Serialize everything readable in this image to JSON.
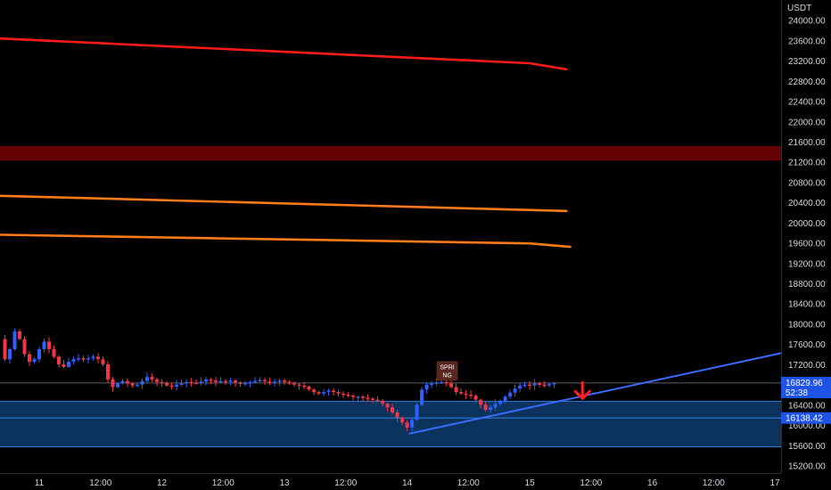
{
  "chart_data": {
    "type": "candlestick",
    "currency": "USDT",
    "ylim": [
      15050,
      24400
    ],
    "y_ticks": [
      "24000.00",
      "23600.00",
      "23200.00",
      "22800.00",
      "22400.00",
      "22000.00",
      "21600.00",
      "21200.00",
      "20800.00",
      "20400.00",
      "20000.00",
      "19600.00",
      "19200.00",
      "18800.00",
      "18400.00",
      "18000.00",
      "17600.00",
      "17200.00",
      "16800.00",
      "16400.00",
      "16000.00",
      "15600.00",
      "15200.00"
    ],
    "y_tick_values": [
      24000,
      23600,
      23200,
      22800,
      22400,
      22000,
      21600,
      21200,
      20800,
      20400,
      20000,
      19600,
      19200,
      18800,
      18400,
      18000,
      17600,
      17200,
      16800,
      16400,
      16000,
      15600,
      15200
    ],
    "x_range_days": [
      10.68,
      17.05
    ],
    "x_ticks": [
      {
        "label": "11",
        "day": 11.0
      },
      {
        "label": "12:00",
        "day": 11.5
      },
      {
        "label": "12",
        "day": 12.0
      },
      {
        "label": "12:00",
        "day": 12.5
      },
      {
        "label": "13",
        "day": 13.0
      },
      {
        "label": "12:00",
        "day": 13.5
      },
      {
        "label": "14",
        "day": 14.0
      },
      {
        "label": "12:00",
        "day": 14.5
      },
      {
        "label": "15",
        "day": 15.0
      },
      {
        "label": "12:00",
        "day": 15.5
      },
      {
        "label": "16",
        "day": 16.0
      },
      {
        "label": "12:00",
        "day": 16.5
      },
      {
        "label": "17",
        "day": 17.0
      }
    ],
    "price_path": [
      [
        10.68,
        17700
      ],
      [
        10.72,
        17300
      ],
      [
        10.76,
        17500
      ],
      [
        10.8,
        17850
      ],
      [
        10.84,
        17700
      ],
      [
        10.88,
        17400
      ],
      [
        10.92,
        17250
      ],
      [
        10.96,
        17300
      ],
      [
        11.0,
        17500
      ],
      [
        11.04,
        17650
      ],
      [
        11.08,
        17500
      ],
      [
        11.12,
        17350
      ],
      [
        11.16,
        17200
      ],
      [
        11.2,
        17150
      ],
      [
        11.24,
        17250
      ],
      [
        11.28,
        17300
      ],
      [
        11.32,
        17320
      ],
      [
        11.36,
        17300
      ],
      [
        11.4,
        17320
      ],
      [
        11.44,
        17350
      ],
      [
        11.48,
        17300
      ],
      [
        11.52,
        17200
      ],
      [
        11.56,
        16900
      ],
      [
        11.6,
        16750
      ],
      [
        11.64,
        16820
      ],
      [
        11.68,
        16870
      ],
      [
        11.72,
        16820
      ],
      [
        11.76,
        16780
      ],
      [
        11.8,
        16800
      ],
      [
        11.84,
        16870
      ],
      [
        11.88,
        16950
      ],
      [
        11.92,
        16900
      ],
      [
        11.96,
        16850
      ],
      [
        12.0,
        16830
      ],
      [
        12.04,
        16780
      ],
      [
        12.08,
        16760
      ],
      [
        12.12,
        16800
      ],
      [
        12.16,
        16820
      ],
      [
        12.2,
        16850
      ],
      [
        12.24,
        16840
      ],
      [
        12.28,
        16830
      ],
      [
        12.32,
        16860
      ],
      [
        12.36,
        16900
      ],
      [
        12.4,
        16880
      ],
      [
        12.44,
        16850
      ],
      [
        12.48,
        16870
      ],
      [
        12.52,
        16860
      ],
      [
        12.56,
        16880
      ],
      [
        12.6,
        16840
      ],
      [
        12.64,
        16820
      ],
      [
        12.68,
        16830
      ],
      [
        12.72,
        16850
      ],
      [
        12.76,
        16870
      ],
      [
        12.8,
        16890
      ],
      [
        12.84,
        16860
      ],
      [
        12.88,
        16840
      ],
      [
        12.92,
        16860
      ],
      [
        12.96,
        16880
      ],
      [
        13.0,
        16850
      ],
      [
        13.04,
        16830
      ],
      [
        13.08,
        16800
      ],
      [
        13.12,
        16780
      ],
      [
        13.16,
        16760
      ],
      [
        13.2,
        16700
      ],
      [
        13.24,
        16650
      ],
      [
        13.28,
        16620
      ],
      [
        13.32,
        16650
      ],
      [
        13.36,
        16680
      ],
      [
        13.4,
        16650
      ],
      [
        13.44,
        16620
      ],
      [
        13.48,
        16600
      ],
      [
        13.52,
        16580
      ],
      [
        13.56,
        16560
      ],
      [
        13.6,
        16560
      ],
      [
        13.64,
        16540
      ],
      [
        13.68,
        16520
      ],
      [
        13.72,
        16500
      ],
      [
        13.76,
        16480
      ],
      [
        13.8,
        16420
      ],
      [
        13.84,
        16350
      ],
      [
        13.88,
        16250
      ],
      [
        13.92,
        16150
      ],
      [
        13.96,
        16050
      ],
      [
        14.0,
        15950
      ],
      [
        14.04,
        16100
      ],
      [
        14.08,
        16400
      ],
      [
        14.12,
        16700
      ],
      [
        14.16,
        16800
      ],
      [
        14.2,
        16820
      ],
      [
        14.24,
        16840
      ],
      [
        14.28,
        16850
      ],
      [
        14.32,
        16830
      ],
      [
        14.36,
        16750
      ],
      [
        14.4,
        16650
      ],
      [
        14.44,
        16620
      ],
      [
        14.48,
        16600
      ],
      [
        14.52,
        16580
      ],
      [
        14.56,
        16500
      ],
      [
        14.6,
        16400
      ],
      [
        14.64,
        16300
      ],
      [
        14.68,
        16350
      ],
      [
        14.72,
        16420
      ],
      [
        14.76,
        16480
      ],
      [
        14.8,
        16560
      ],
      [
        14.84,
        16640
      ],
      [
        14.88,
        16720
      ],
      [
        14.92,
        16780
      ],
      [
        14.96,
        16800
      ],
      [
        15.0,
        16780
      ],
      [
        15.04,
        16820
      ],
      [
        15.08,
        16800
      ],
      [
        15.12,
        16780
      ],
      [
        15.16,
        16810
      ],
      [
        15.2,
        16830
      ]
    ],
    "lines": [
      {
        "color": "#ff1a1a",
        "width": 2.6,
        "points": [
          [
            10.68,
            23640
          ],
          [
            15.0,
            23150
          ],
          [
            15.3,
            23030
          ]
        ]
      },
      {
        "color": "#ff7a18",
        "width": 2.6,
        "points": [
          [
            10.68,
            20530
          ],
          [
            15.3,
            20230
          ]
        ]
      },
      {
        "color": "#ff7a18",
        "width": 2.6,
        "points": [
          [
            10.68,
            19760
          ],
          [
            15.0,
            19590
          ],
          [
            15.33,
            19520
          ]
        ]
      },
      {
        "color": "#3a6bff",
        "width": 2.0,
        "points": [
          [
            14.02,
            15830
          ],
          [
            17.05,
            17420
          ]
        ]
      }
    ],
    "zones": [
      {
        "color": "#6b0000",
        "opacity": 0.95,
        "y_from": 21225,
        "y_to": 21515
      },
      {
        "color": "#0d3868",
        "opacity": 0.9,
        "y_from": 15570,
        "y_to": 16470
      }
    ],
    "hlines": [
      {
        "value": 16829.96,
        "color": "#5d606b",
        "width": 1
      },
      {
        "value": 16470,
        "color": "#2f7bd6",
        "width": 1
      },
      {
        "value": 16138.42,
        "color": "#2f7bd6",
        "width": 1.2
      },
      {
        "value": 15570,
        "color": "#2f7bd6",
        "width": 1
      }
    ],
    "price_tags": [
      {
        "value": 16829.96,
        "text": "16829.96",
        "subtext": "52:38",
        "bg": "#1e53e5"
      },
      {
        "value": 16138.42,
        "text": "16138.42",
        "subtext": "",
        "bg": "#1e53e5"
      }
    ],
    "marker": {
      "lines": [
        "SPRI",
        "NG"
      ],
      "day": 14.32,
      "value": 17050,
      "bg": "#5a2620"
    },
    "arrow": {
      "day": 15.43,
      "value": 16700,
      "color": "#ff2020"
    },
    "colors": {
      "up": "#2962ff",
      "down": "#f23645",
      "axis_text": "#d1d4dc",
      "background": "#000000"
    }
  }
}
